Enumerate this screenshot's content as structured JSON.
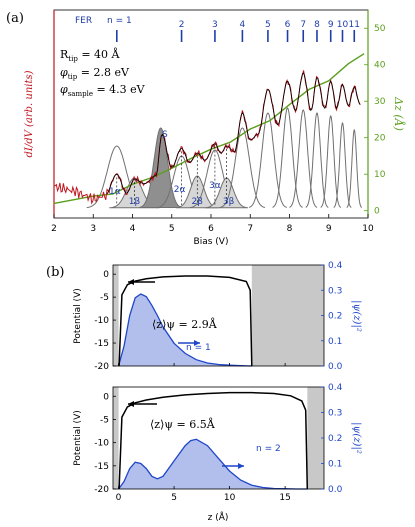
{
  "colors": {
    "measured": "#c0151d",
    "fer_blue": "#1f3ea8",
    "z_green": "#5a9f1c",
    "gray_fill": "#9a9a9a",
    "gray_line": "#707070",
    "potential": "#000000",
    "wave": "#1f47c8",
    "wave_fill": "#aab8ea",
    "shade": "#c8c8c8"
  },
  "panel_a": {
    "label": "(a)",
    "fer_label": "FER",
    "n_label": "n = 1",
    "params": [
      "R",
      "tip",
      " = 40 Å",
      "φ",
      "tip",
      " = 2.8 eV",
      "φ",
      "sample",
      " = 4.3 eV"
    ],
    "y_left_label": "dI/dV (arb. units)",
    "y_right_label": "Δz (Å)",
    "x_label": "Bias (V)",
    "s_label": "S",
    "peak_labels": [
      "1α",
      "1β",
      "2α",
      "2β",
      "3α",
      "3β"
    ]
  },
  "panel_b": {
    "label": "(b)",
    "top": {
      "psi_mean": "⟨z⟩ψ = 2.9Å",
      "n_label": "n = 1"
    },
    "bottom": {
      "psi_mean": "⟨z⟩ψ = 6.5Å",
      "n_label": "n = 2"
    },
    "y_left_label": "Potential (V)",
    "y_right_label": "|ψ(z)|²",
    "x_label": "z (Å)"
  },
  "chart_data": [
    {
      "type": "line",
      "title": "",
      "xlabel": "Bias (V)",
      "ylabel": "dI/dV (arb. units)",
      "y2label": "Δz (Å)",
      "xlim": [
        2,
        10
      ],
      "xticks": [
        2,
        3,
        4,
        5,
        6,
        7,
        8,
        9,
        10
      ],
      "y2lim": [
        -2,
        55
      ],
      "y2ticks": [
        0,
        10,
        20,
        30,
        40,
        50
      ],
      "fer_levels": {
        "n": [
          1,
          2,
          3,
          4,
          5,
          6,
          7,
          8,
          9,
          10,
          11
        ],
        "bias": [
          3.6,
          5.25,
          6.1,
          6.8,
          7.45,
          7.95,
          8.35,
          8.7,
          9.05,
          9.35,
          9.65
        ]
      },
      "fitted_peaks": [
        {
          "name": "1α",
          "center": 3.6,
          "height": 0.62,
          "width": 0.24
        },
        {
          "name": "1β",
          "center": 4.05,
          "height": 0.3,
          "width": 0.2
        },
        {
          "name": "S",
          "center": 4.72,
          "height": 0.8,
          "width": 0.17
        },
        {
          "name": "2α",
          "center": 5.25,
          "height": 0.52,
          "width": 0.2
        },
        {
          "name": "2β",
          "center": 5.65,
          "height": 0.32,
          "width": 0.17
        },
        {
          "name": "3α",
          "center": 6.1,
          "height": 0.58,
          "width": 0.2
        },
        {
          "name": "3β",
          "center": 6.4,
          "height": 0.3,
          "width": 0.17
        },
        {
          "name": "4",
          "center": 6.8,
          "height": 0.8,
          "width": 0.18
        },
        {
          "name": "5",
          "center": 7.45,
          "height": 0.95,
          "width": 0.15
        },
        {
          "name": "6",
          "center": 7.95,
          "height": 1.0,
          "width": 0.12
        },
        {
          "name": "7",
          "center": 8.35,
          "height": 0.98,
          "width": 0.11
        },
        {
          "name": "8",
          "center": 8.7,
          "height": 0.95,
          "width": 0.09
        },
        {
          "name": "9",
          "center": 9.05,
          "height": 0.92,
          "width": 0.08
        },
        {
          "name": "10",
          "center": 9.35,
          "height": 0.85,
          "width": 0.07
        },
        {
          "name": "11",
          "center": 9.65,
          "height": 0.78,
          "width": 0.06
        }
      ],
      "delta_z": {
        "x": [
          2,
          3,
          3.5,
          4,
          4.5,
          5,
          5.5,
          6,
          6.5,
          7,
          7.5,
          8,
          8.5,
          9,
          9.5,
          9.9
        ],
        "y": [
          2,
          4,
          5,
          7,
          9,
          12,
          14,
          17,
          19,
          22,
          25,
          29,
          33,
          36,
          40,
          43
        ]
      },
      "measured_dIdV": {
        "x": [
          2.0,
          2.2,
          2.5,
          2.8,
          3.0,
          3.3,
          3.6,
          3.85,
          4.05,
          4.3,
          4.6,
          4.75,
          5.0,
          5.25,
          5.45,
          5.65,
          5.85,
          6.1,
          6.25,
          6.4,
          6.6,
          6.8,
          7.0,
          7.2,
          7.45,
          7.7,
          7.95,
          8.15,
          8.35,
          8.55,
          8.7,
          8.9,
          9.05,
          9.2,
          9.35,
          9.5,
          9.65,
          9.8
        ],
        "y": [
          0.66,
          0.64,
          0.62,
          0.58,
          0.55,
          0.58,
          0.76,
          0.6,
          0.72,
          0.68,
          0.75,
          1.1,
          0.82,
          0.98,
          0.86,
          0.94,
          0.88,
          1.02,
          0.94,
          1.0,
          0.95,
          1.28,
          1.05,
          1.1,
          1.48,
          1.18,
          1.55,
          1.3,
          1.62,
          1.3,
          1.58,
          1.32,
          1.55,
          1.32,
          1.52,
          1.34,
          1.5,
          1.35
        ]
      }
    },
    {
      "type": "line",
      "title": "n = 1",
      "xlabel": "z (Å)",
      "ylabel": "Potential (V)",
      "y2label": "|ψ(z)|²",
      "xlim": [
        -0.5,
        18.5
      ],
      "xticks": [
        0,
        5,
        10,
        15
      ],
      "ylim": [
        -20,
        2
      ],
      "yticks": [
        0,
        -5,
        -10,
        -15,
        -20
      ],
      "y2lim": [
        0,
        0.4
      ],
      "y2ticks": [
        0.0,
        0.1,
        0.2,
        0.3,
        0.4
      ],
      "barrier_z": [
        0,
        12
      ],
      "potential": {
        "x": [
          0.05,
          0.3,
          0.8,
          1.5,
          2.5,
          4,
          6,
          8,
          10,
          11.5,
          11.85,
          12.0
        ],
        "y": [
          -20,
          -4.5,
          -2.3,
          -1.5,
          -1.0,
          -0.6,
          -0.4,
          -0.4,
          -0.7,
          -1.6,
          -3.5,
          -20
        ]
      },
      "psi_sq": {
        "x": [
          0,
          0.5,
          1,
          1.5,
          2,
          2.5,
          3,
          3.5,
          4,
          5,
          6,
          7,
          8,
          9,
          10,
          11,
          12
        ],
        "y": [
          0,
          0.08,
          0.2,
          0.27,
          0.285,
          0.275,
          0.24,
          0.2,
          0.155,
          0.09,
          0.05,
          0.025,
          0.012,
          0.006,
          0.003,
          0.001,
          0
        ]
      }
    },
    {
      "type": "line",
      "title": "n = 2",
      "xlabel": "z (Å)",
      "ylabel": "Potential (V)",
      "y2label": "|ψ(z)|²",
      "xlim": [
        -0.5,
        18.5
      ],
      "xticks": [
        0,
        5,
        10,
        15
      ],
      "ylim": [
        -20,
        2
      ],
      "yticks": [
        0,
        -5,
        -10,
        -15,
        -20
      ],
      "y2lim": [
        0,
        0.4
      ],
      "y2ticks": [
        0.0,
        0.1,
        0.2,
        0.3,
        0.4
      ],
      "barrier_z": [
        0,
        17
      ],
      "potential": {
        "x": [
          0.05,
          0.3,
          0.8,
          1.5,
          2.5,
          4,
          6,
          8,
          10,
          12,
          14,
          15.5,
          16.5,
          16.85,
          17.0
        ],
        "y": [
          -20,
          -4.5,
          -2.3,
          -1.4,
          -0.8,
          -0.2,
          0.3,
          0.6,
          0.8,
          0.8,
          0.6,
          0.1,
          -1.0,
          -3.0,
          -20
        ]
      },
      "psi_sq": {
        "x": [
          0,
          0.5,
          1,
          1.5,
          2,
          2.5,
          3,
          3.5,
          4,
          5,
          6,
          6.5,
          7,
          8,
          9,
          10,
          11,
          12,
          13,
          14,
          15,
          16,
          17
        ],
        "y": [
          0,
          0.03,
          0.08,
          0.105,
          0.1,
          0.08,
          0.05,
          0.04,
          0.05,
          0.11,
          0.17,
          0.19,
          0.195,
          0.17,
          0.12,
          0.07,
          0.035,
          0.015,
          0.006,
          0.002,
          0.001,
          0,
          0
        ]
      }
    }
  ]
}
